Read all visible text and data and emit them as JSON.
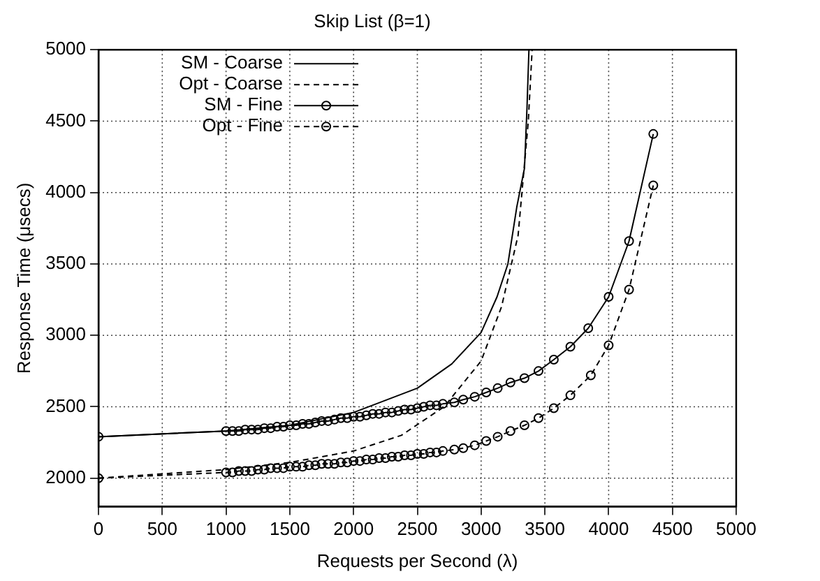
{
  "chart_data": {
    "type": "line",
    "title": "Skip List (β=1)",
    "xlabel": "Requests per Second (λ)",
    "ylabel": "Response Time (μsecs)",
    "xlim": [
      0,
      5000
    ],
    "xticks": [
      0,
      500,
      1000,
      1500,
      2000,
      2500,
      3000,
      3500,
      4000,
      4500,
      5000
    ],
    "ylim": [
      1800,
      5000
    ],
    "yticks": [
      2000,
      2500,
      3000,
      3500,
      4000,
      4500,
      5000
    ],
    "grid": true,
    "legend": "top left",
    "series": [
      {
        "name": "SM - Coarse",
        "color": "#000000",
        "marker": "none",
        "line_style": "solid",
        "x": [
          0,
          1000,
          1500,
          2000,
          2500,
          2770,
          3000,
          3125,
          3210,
          3280,
          3340,
          3360,
          3375
        ],
        "values": [
          2290,
          2330,
          2370,
          2460,
          2630,
          2800,
          3020,
          3270,
          3500,
          3900,
          4170,
          4600,
          5000
        ]
      },
      {
        "name": "Opt - Coarse",
        "color": "#000000",
        "marker": "none",
        "line_style": "dashed",
        "x": [
          0,
          1000,
          1500,
          2000,
          2375,
          2710,
          3000,
          3160,
          3290,
          3320,
          3370,
          3400
        ],
        "values": [
          2000,
          2060,
          2110,
          2190,
          2300,
          2500,
          2820,
          3200,
          3700,
          4000,
          4500,
          5000
        ]
      },
      {
        "name": "SM - Fine",
        "color": "#000000",
        "marker": "circle",
        "line_style": "solid",
        "x": [
          0,
          1000,
          1050,
          1100,
          1150,
          1200,
          1250,
          1300,
          1350,
          1400,
          1450,
          1500,
          1550,
          1600,
          1650,
          1700,
          1750,
          1800,
          1850,
          1900,
          1950,
          2000,
          2050,
          2100,
          2150,
          2200,
          2250,
          2300,
          2350,
          2400,
          2450,
          2500,
          2550,
          2600,
          2650,
          2700,
          2790,
          2860,
          2950,
          3040,
          3130,
          3230,
          3340,
          3450,
          3570,
          3700,
          3840,
          4000,
          4160,
          4350
        ],
        "values": [
          2290,
          2330,
          2330,
          2330,
          2340,
          2340,
          2340,
          2350,
          2350,
          2360,
          2360,
          2370,
          2370,
          2380,
          2380,
          2390,
          2400,
          2400,
          2410,
          2420,
          2420,
          2430,
          2430,
          2440,
          2450,
          2450,
          2460,
          2460,
          2470,
          2480,
          2480,
          2490,
          2500,
          2510,
          2510,
          2520,
          2530,
          2550,
          2570,
          2600,
          2630,
          2670,
          2700,
          2750,
          2830,
          2920,
          3050,
          3270,
          3660,
          4410
        ]
      },
      {
        "name": "Opt - Fine",
        "color": "#000000",
        "marker": "circle",
        "line_style": "dashed",
        "x": [
          0,
          1000,
          1050,
          1100,
          1150,
          1200,
          1250,
          1300,
          1350,
          1400,
          1450,
          1500,
          1550,
          1600,
          1650,
          1700,
          1750,
          1800,
          1850,
          1900,
          1950,
          2000,
          2050,
          2100,
          2150,
          2200,
          2250,
          2300,
          2350,
          2400,
          2450,
          2500,
          2550,
          2600,
          2650,
          2700,
          2790,
          2860,
          2950,
          3040,
          3130,
          3230,
          3340,
          3450,
          3570,
          3700,
          3860,
          4000,
          4160,
          4350
        ],
        "values": [
          2000,
          2040,
          2040,
          2050,
          2050,
          2050,
          2060,
          2060,
          2070,
          2070,
          2070,
          2080,
          2080,
          2080,
          2090,
          2090,
          2100,
          2100,
          2100,
          2110,
          2110,
          2120,
          2120,
          2130,
          2130,
          2140,
          2140,
          2150,
          2150,
          2160,
          2160,
          2170,
          2170,
          2180,
          2180,
          2190,
          2200,
          2210,
          2230,
          2260,
          2290,
          2330,
          2370,
          2420,
          2490,
          2580,
          2720,
          2930,
          3320,
          4050
        ]
      }
    ]
  }
}
